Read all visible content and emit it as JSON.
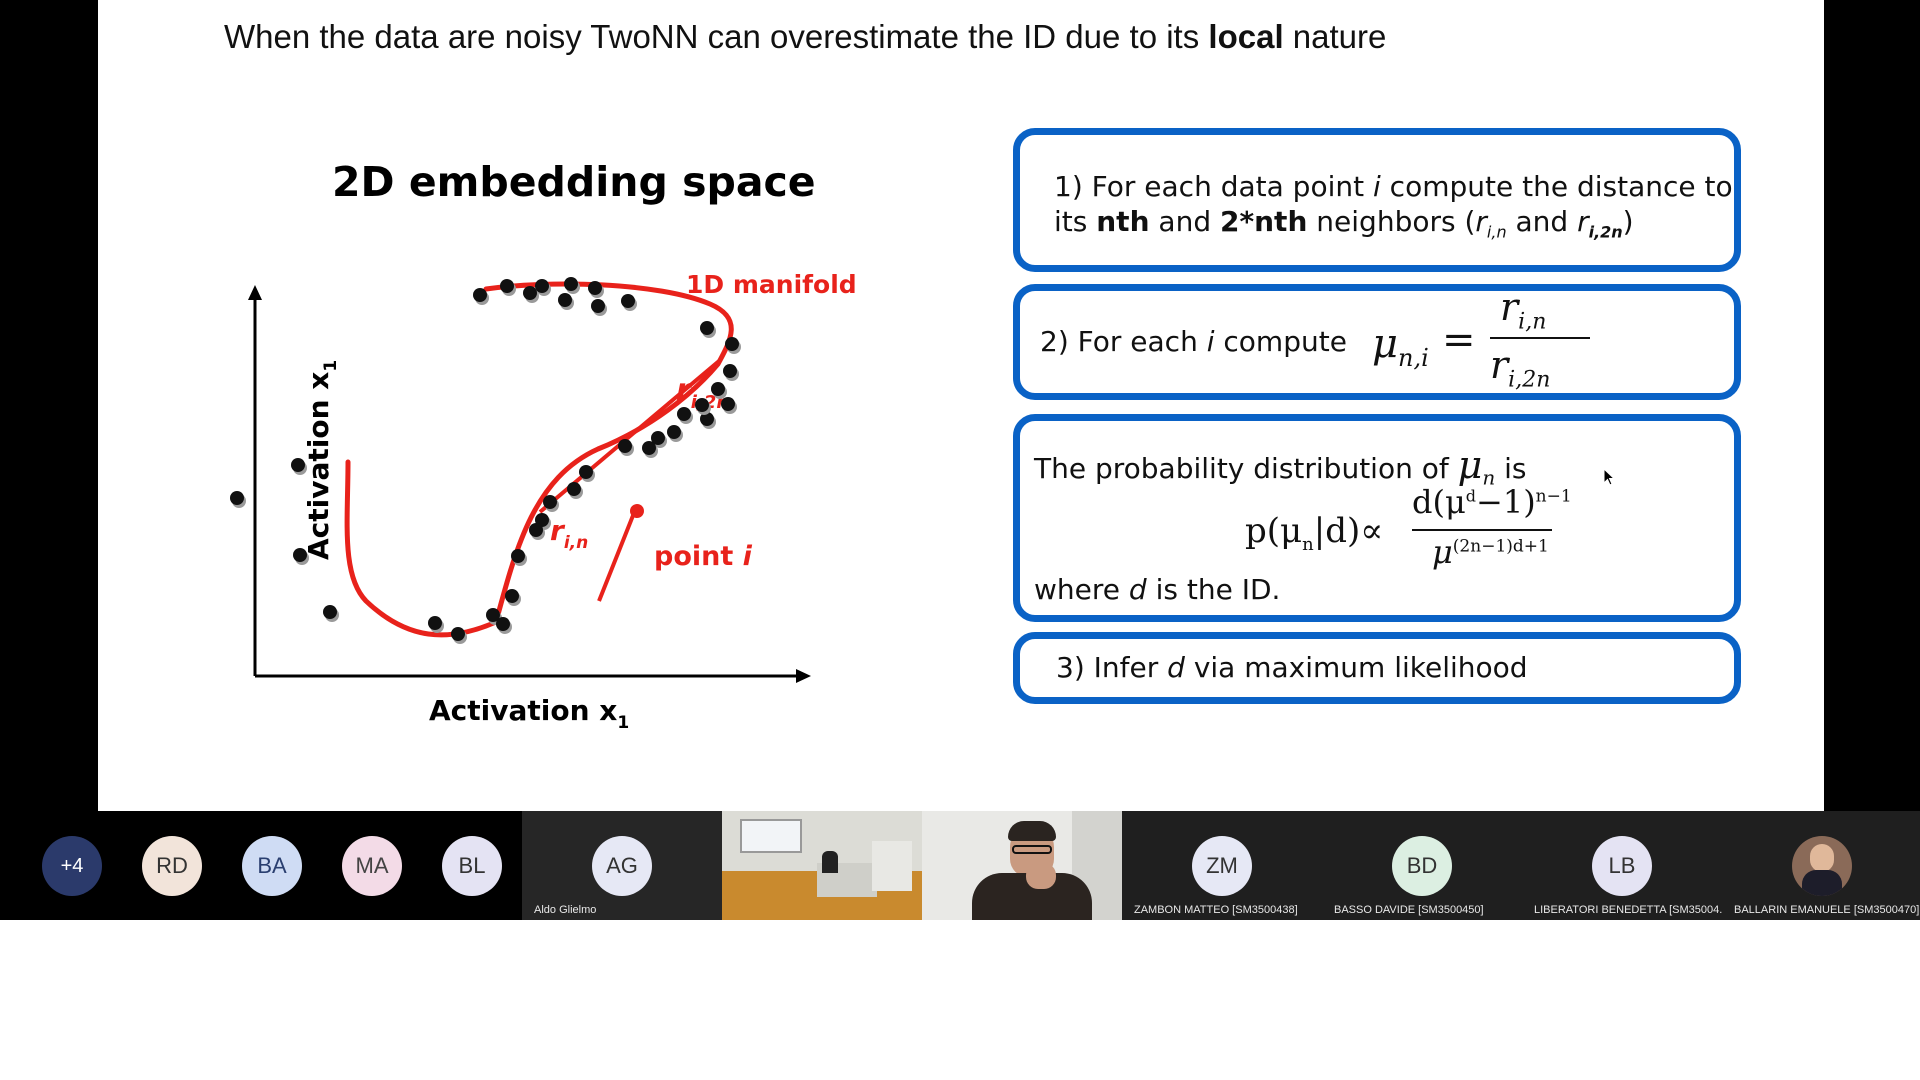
{
  "slide": {
    "title_pre": "When the data are noisy TwoNN can overestimate the ID due to its ",
    "title_bold": "local",
    "title_post": " nature",
    "plot": {
      "title": "2D embedding space",
      "ylabel": "Activation x",
      "ylabel_sub": "1",
      "xlabel": "Activation x",
      "xlabel_sub": "1",
      "manifold_label": "1D manifold",
      "r2n_label": "r",
      "r2n_sub": "i,2n",
      "rn_label": "r",
      "rn_sub": "i,n",
      "point_label": "point",
      "point_var": "i",
      "curve_color": "#e8221b",
      "point_color": "#111111"
    },
    "steps": {
      "s1_a": "1) For each data point ",
      "s1_i": "i",
      "s1_b": " compute the distance to",
      "s1_c": "its ",
      "s1_nth": "nth",
      "s1_and": " and ",
      "s1_2nth": "2*nth",
      "s1_d": " neighbors (",
      "s1_r1": "r",
      "s1_r1sub": "i,n",
      "s1_and2": " and ",
      "s1_r2": "r",
      "s1_r2sub": "i,2n",
      "s1_close": ")",
      "s2_a": "2) For each ",
      "s2_i": "i",
      "s2_b": " compute",
      "s2_mu": "μ",
      "s2_musub": "n,i",
      "s2_eq": "=",
      "s2_num": "r",
      "s2_numsub": "i,n",
      "s2_den": "r",
      "s2_densub": "i,2n",
      "s3_a": "The probability distribution of",
      "s3_mu": "μ",
      "s3_musub": "n",
      "s3_is": "is",
      "s3_lhs": "p(μ",
      "s3_lhs_sub": "n",
      "s3_lhs_end": "|d)∝",
      "s3_num": "d(μ",
      "s3_num_sup": "d",
      "s3_num_end": "−1)",
      "s3_num_exp": "n−1",
      "s3_den": "μ",
      "s3_den_exp": "(2n−1)d+1",
      "s3_where_a": "where ",
      "s3_where_d": "d",
      "s3_where_b": " is the ID.",
      "s4_a": "3) Infer ",
      "s4_d": "d",
      "s4_b": " via maximum likelihood"
    }
  },
  "participants": [
    {
      "initials": "+4",
      "bg": "#2b3a6b",
      "fg": "#ffffff",
      "tile_bg": "#000000"
    },
    {
      "initials": "RD",
      "bg": "#f2e4da",
      "fg": "#333333",
      "tile_bg": "#000000"
    },
    {
      "initials": "BA",
      "bg": "#cfdcf4",
      "fg": "#2a3f70",
      "tile_bg": "#000000"
    },
    {
      "initials": "MA",
      "bg": "#f3dbe7",
      "fg": "#444444",
      "tile_bg": "#000000"
    },
    {
      "initials": "BL",
      "bg": "#e4e3f3",
      "fg": "#333333",
      "tile_bg": "#000000"
    },
    {
      "initials": "AG",
      "name": "Aldo Glielmo",
      "bg": "#e6e8f5",
      "fg": "#333333",
      "tile_bg": "#262626"
    },
    {
      "initials": "ZM",
      "name": "ZAMBON MATTEO [SM3500438]",
      "bg": "#e6e8f5",
      "fg": "#333333",
      "tile_bg": "#1f1f1f"
    },
    {
      "initials": "BD",
      "name": "BASSO DAVIDE [SM3500450]",
      "bg": "#dcefe2",
      "fg": "#333333",
      "tile_bg": "#1f1f1f"
    },
    {
      "initials": "LB",
      "name": "LIBERATORI BENEDETTA [SM35004...",
      "bg": "#e4e3f3",
      "fg": "#333333",
      "tile_bg": "#1f1f1f"
    },
    {
      "initials": "",
      "name": "BALLARIN EMANUELE [SM3500470]",
      "bg": "#8a6a58",
      "fg": "#ffffff",
      "tile_bg": "#1f1f1f"
    }
  ]
}
